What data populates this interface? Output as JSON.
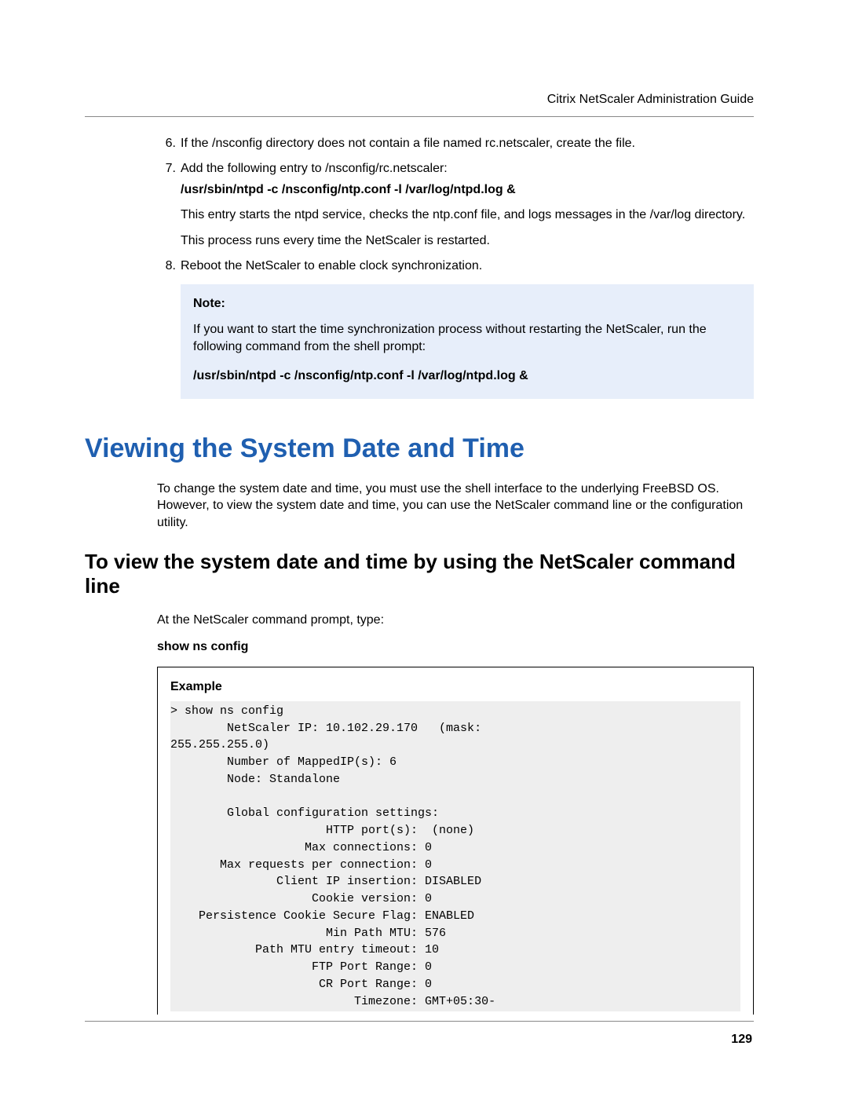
{
  "header": {
    "title": "Citrix NetScaler Administration Guide"
  },
  "steps": {
    "s6": {
      "num": "6.",
      "text": "If the /nsconfig directory does not contain a file named rc.netscaler, create the file."
    },
    "s7": {
      "num": "7.",
      "text": "Add the following entry to /nsconfig/rc.netscaler:",
      "cmd": "/usr/sbin/ntpd -c /nsconfig/ntp.conf -l /var/log/ntpd.log &",
      "p1": "This entry starts the ntpd service, checks the ntp.conf file, and logs messages in the /var/log directory.",
      "p2": "This process runs every time the NetScaler is restarted."
    },
    "s8": {
      "num": "8.",
      "text": "Reboot the NetScaler to enable clock synchronization."
    }
  },
  "note": {
    "label": "Note:",
    "text": "If you want to start the time synchronization process without restarting the NetScaler, run the following command from the shell prompt:",
    "cmd": "/usr/sbin/ntpd -c /nsconfig/ntp.conf -l /var/log/ntpd.log &"
  },
  "h1": "Viewing the System Date and Time",
  "intro": "To change the system date and time, you must use the shell interface to the underlying FreeBSD OS. However, to view the system date and time, you can use the NetScaler command line or the configuration utility.",
  "h2": "To view the system date and time by using the NetScaler command line",
  "prompt": "At the NetScaler command prompt, type:",
  "showcmd": "show ns config",
  "example": {
    "label": "Example",
    "code": "> show ns config\n        NetScaler IP: 10.102.29.170   (mask:\n255.255.255.0)\n        Number of MappedIP(s): 6\n        Node: Standalone\n\n        Global configuration settings:\n                      HTTP port(s):  (none)\n                   Max connections: 0\n       Max requests per connection: 0\n               Client IP insertion: DISABLED\n                    Cookie version: 0\n    Persistence Cookie Secure Flag: ENABLED\n                      Min Path MTU: 576\n            Path MTU entry timeout: 10\n                    FTP Port Range: 0\n                     CR Port Range: 0\n                          Timezone: GMT+05:30-"
  },
  "pagenum": "129"
}
